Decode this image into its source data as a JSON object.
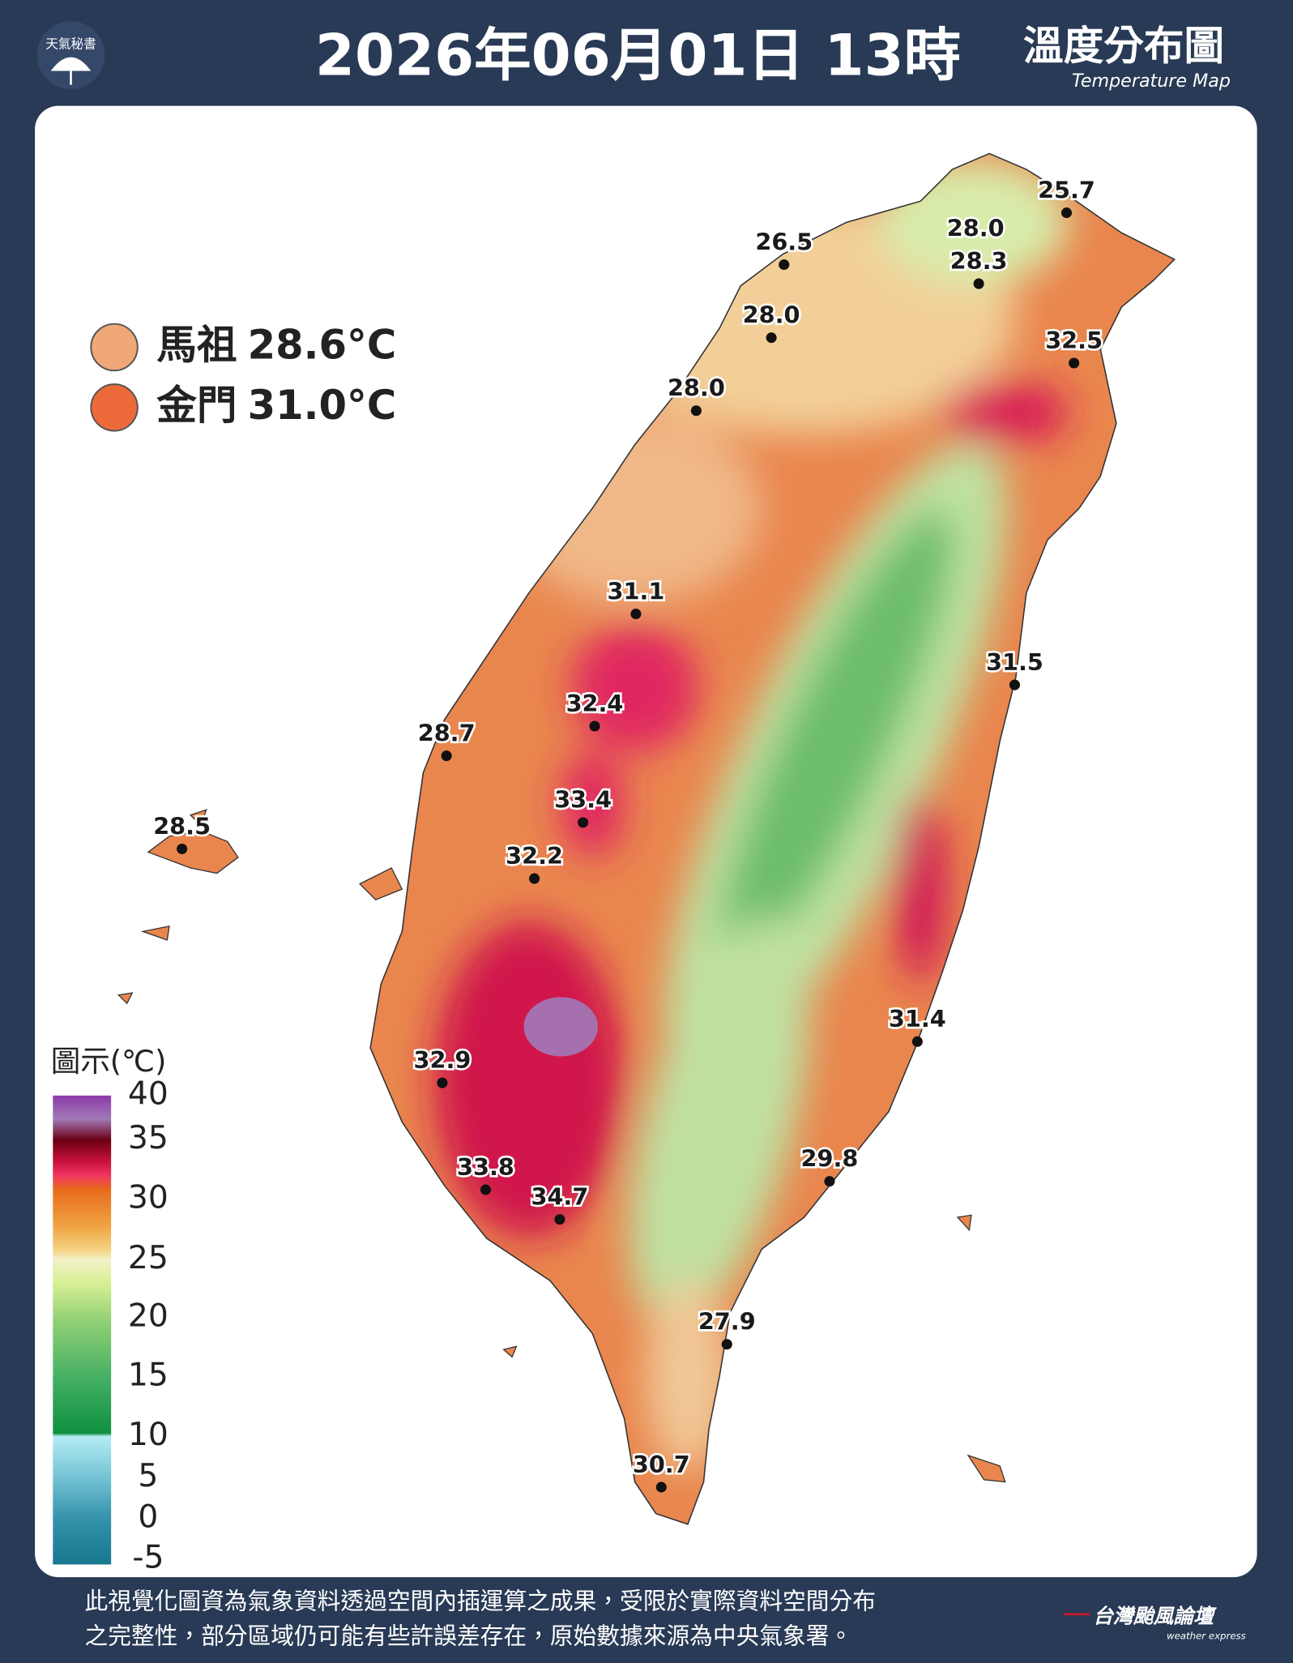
{
  "header": {
    "logo": "天氣秘書",
    "title": "2026年06月01日 13時",
    "map_title": "溫度分布圖",
    "map_subtitle": "Temperature Map"
  },
  "islands": [
    {
      "name": "馬祖",
      "value": "28.6°C"
    },
    {
      "name": "金門",
      "value": "31.0°C"
    }
  ],
  "stations": [
    "25.7",
    "28.0",
    "28.3",
    "26.5",
    "28.0",
    "32.5",
    "28.0",
    "31.1",
    "31.5",
    "32.4",
    "28.7",
    "33.4",
    "28.5",
    "32.2",
    "31.4",
    "32.9",
    "29.8",
    "33.8",
    "34.7",
    "27.9",
    "30.7"
  ],
  "legend": {
    "title": "圖示(℃)",
    "labels": [
      40,
      35,
      30,
      25,
      20,
      15,
      10,
      5,
      0,
      -5
    ]
  },
  "footer": {
    "lines": [
      "此視覺化圖資為氣象資料透過空間內插運算之成果，受限於實際資料空間分布",
      "之完整性，部分區域仍可能有些許誤差存在，原始數據來源為中央氣象署。"
    ],
    "brand": "台灣颱風論壇",
    "brand_sub": "weather express"
  }
}
